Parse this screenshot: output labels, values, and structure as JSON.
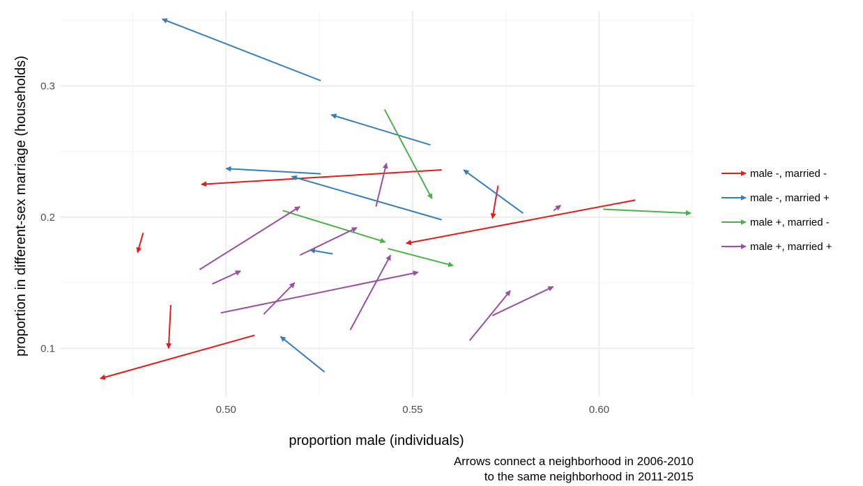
{
  "chart_data": {
    "type": "arrow",
    "xlabel": "proportion male (individuals)",
    "ylabel": "proportion in different-sex marriage (households)",
    "caption": [
      "Arrows connect a neighborhood in 2006-2010",
      "to the same neighborhood in 2011-2015"
    ],
    "xlim": [
      0.4555,
      0.6255
    ],
    "ylim": [
      0.063,
      0.357
    ],
    "x_ticks": [
      {
        "value": 0.5,
        "label": "0.50"
      },
      {
        "value": 0.55,
        "label": "0.55"
      },
      {
        "value": 0.6,
        "label": "0.60"
      }
    ],
    "y_ticks": [
      {
        "value": 0.1,
        "label": "0.1"
      },
      {
        "value": 0.2,
        "label": "0.2"
      },
      {
        "value": 0.3,
        "label": "0.3"
      }
    ],
    "grid": true,
    "legend": {
      "placement": "right",
      "entries": [
        {
          "key": "red",
          "label": "male -, married -"
        },
        {
          "key": "blue",
          "label": "male -, married +"
        },
        {
          "key": "green",
          "label": "male +, married -"
        },
        {
          "key": "purple",
          "label": "male +, married +"
        }
      ]
    },
    "colors": {
      "red": "#e41a1c",
      "blue": "#377eb8",
      "green": "#4daf4a",
      "purple": "#984ea3"
    },
    "series": [
      {
        "key": "red",
        "arrows": [
          {
            "x0": 0.5077,
            "y0": 0.11,
            "x1": 0.4663,
            "y1": 0.077
          },
          {
            "x0": 0.4852,
            "y0": 0.133,
            "x1": 0.4846,
            "y1": 0.1
          },
          {
            "x0": 0.4778,
            "y0": 0.188,
            "x1": 0.4763,
            "y1": 0.173
          },
          {
            "x0": 0.5578,
            "y0": 0.236,
            "x1": 0.4934,
            "y1": 0.225
          },
          {
            "x0": 0.5729,
            "y0": 0.224,
            "x1": 0.5714,
            "y1": 0.199
          },
          {
            "x0": 0.6097,
            "y0": 0.213,
            "x1": 0.5483,
            "y1": 0.18
          }
        ]
      },
      {
        "key": "blue",
        "arrows": [
          {
            "x0": 0.5254,
            "y0": 0.304,
            "x1": 0.4829,
            "y1": 0.351
          },
          {
            "x0": 0.5548,
            "y0": 0.255,
            "x1": 0.5282,
            "y1": 0.278
          },
          {
            "x0": 0.5254,
            "y0": 0.233,
            "x1": 0.5,
            "y1": 0.237
          },
          {
            "x0": 0.5578,
            "y0": 0.198,
            "x1": 0.5176,
            "y1": 0.231
          },
          {
            "x0": 0.5796,
            "y0": 0.203,
            "x1": 0.5637,
            "y1": 0.236
          },
          {
            "x0": 0.5286,
            "y0": 0.172,
            "x1": 0.5225,
            "y1": 0.175
          },
          {
            "x0": 0.5264,
            "y0": 0.082,
            "x1": 0.5146,
            "y1": 0.109
          }
        ]
      },
      {
        "key": "green",
        "arrows": [
          {
            "x0": 0.5425,
            "y0": 0.282,
            "x1": 0.5552,
            "y1": 0.214
          },
          {
            "x0": 0.5152,
            "y0": 0.205,
            "x1": 0.5427,
            "y1": 0.181
          },
          {
            "x0": 0.5434,
            "y0": 0.176,
            "x1": 0.5609,
            "y1": 0.163
          },
          {
            "x0": 0.6011,
            "y0": 0.206,
            "x1": 0.6246,
            "y1": 0.203
          }
        ]
      },
      {
        "key": "purple",
        "arrows": [
          {
            "x0": 0.4929,
            "y0": 0.16,
            "x1": 0.5198,
            "y1": 0.208
          },
          {
            "x0": 0.4963,
            "y0": 0.149,
            "x1": 0.5039,
            "y1": 0.159
          },
          {
            "x0": 0.5101,
            "y0": 0.126,
            "x1": 0.5184,
            "y1": 0.15
          },
          {
            "x0": 0.4986,
            "y0": 0.127,
            "x1": 0.5515,
            "y1": 0.158
          },
          {
            "x0": 0.5198,
            "y0": 0.171,
            "x1": 0.5351,
            "y1": 0.192
          },
          {
            "x0": 0.5402,
            "y0": 0.208,
            "x1": 0.543,
            "y1": 0.241
          },
          {
            "x0": 0.5333,
            "y0": 0.114,
            "x1": 0.5441,
            "y1": 0.171
          },
          {
            "x0": 0.5653,
            "y0": 0.106,
            "x1": 0.5762,
            "y1": 0.144
          },
          {
            "x0": 0.5714,
            "y0": 0.125,
            "x1": 0.5877,
            "y1": 0.147
          },
          {
            "x0": 0.5878,
            "y0": 0.205,
            "x1": 0.5897,
            "y1": 0.209
          }
        ]
      }
    ]
  }
}
